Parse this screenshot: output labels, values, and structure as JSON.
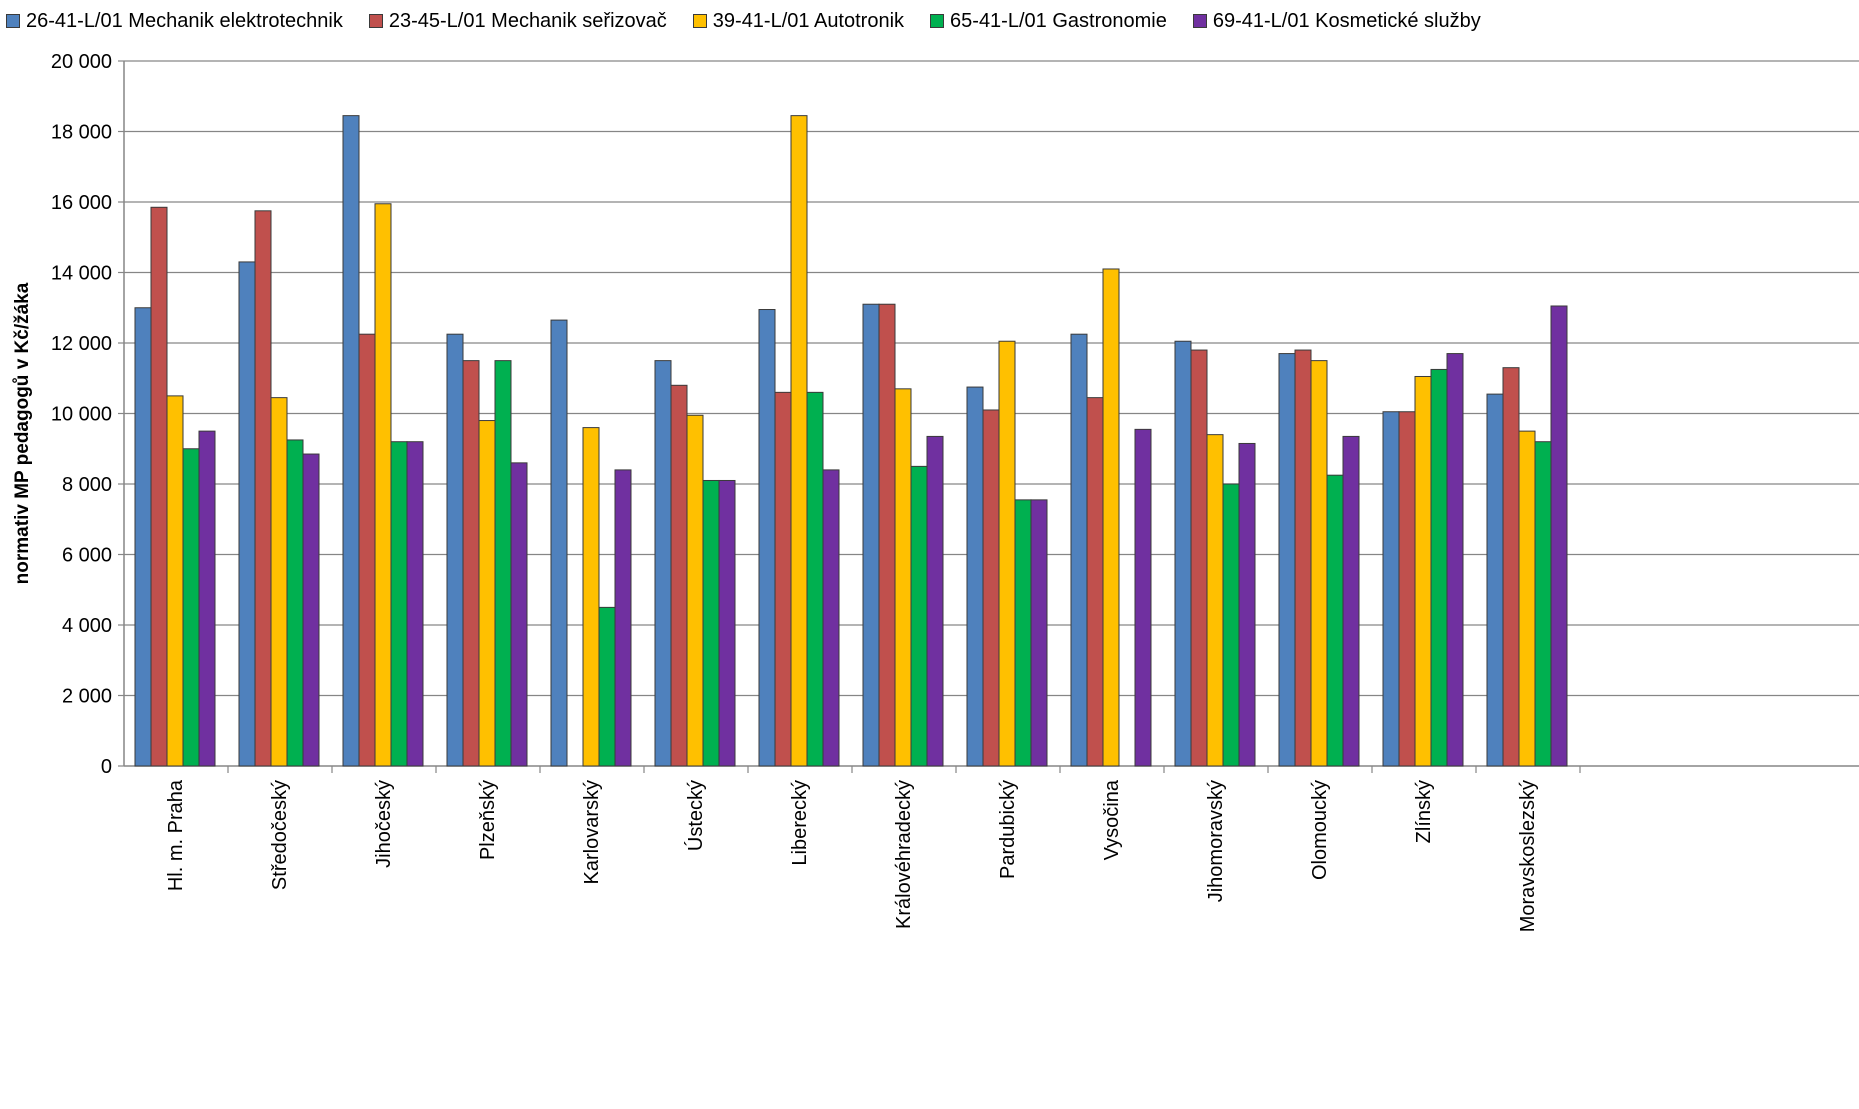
{
  "chart_data": {
    "type": "bar",
    "title": "",
    "xlabel": "",
    "ylabel": "normativ MP pedagogů v Kč/žáka",
    "ylim": [
      0,
      20000
    ],
    "yticks": [
      0,
      2000,
      4000,
      6000,
      8000,
      10000,
      12000,
      14000,
      16000,
      18000,
      20000
    ],
    "ytick_labels": [
      "0",
      "2 000",
      "4 000",
      "6 000",
      "8 000",
      "10 000",
      "12 000",
      "14 000",
      "16 000",
      "18 000",
      "20 000"
    ],
    "grid": "horizontal",
    "legend_position": "top",
    "categories": [
      "Hl. m. Praha",
      "Středočeský",
      "Jihočeský",
      "Plzeňský",
      "Karlovarský",
      "Ústecký",
      "Liberecký",
      "Královéhradecký",
      "Pardubický",
      "Vysočina",
      "Jihomoravský",
      "Olomoucký",
      "Zlínský",
      "Moravskoslezský"
    ],
    "series": [
      {
        "name": "26-41-L/01 Mechanik elektrotechnik",
        "color": "#4F81BD",
        "values": [
          13000,
          14300,
          18450,
          12250,
          12650,
          11500,
          12950,
          13100,
          10750,
          12250,
          12050,
          11700,
          10050,
          10550
        ]
      },
      {
        "name": "23-45-L/01 Mechanik seřizovač",
        "color": "#C0504D",
        "values": [
          15850,
          15750,
          12250,
          11500,
          null,
          10800,
          10600,
          13100,
          10100,
          10450,
          11800,
          11800,
          10050,
          11300
        ]
      },
      {
        "name": "39-41-L/01 Autotronik",
        "color": "#FFC000",
        "values": [
          10500,
          10450,
          15950,
          9800,
          9600,
          9950,
          18450,
          10700,
          12050,
          14100,
          9400,
          11500,
          11050,
          9500
        ]
      },
      {
        "name": "65-41-L/01 Gastronomie",
        "color": "#00B050",
        "values": [
          9000,
          9250,
          9200,
          11500,
          4500,
          8100,
          10600,
          8500,
          7550,
          null,
          8000,
          8250,
          11250,
          9200
        ]
      },
      {
        "name": "69-41-L/01 Kosmetické služby",
        "color": "#7030A0",
        "values": [
          9500,
          8850,
          9200,
          8600,
          8400,
          8100,
          8400,
          9350,
          7550,
          9550,
          9150,
          9350,
          11700,
          13050
        ]
      }
    ]
  }
}
